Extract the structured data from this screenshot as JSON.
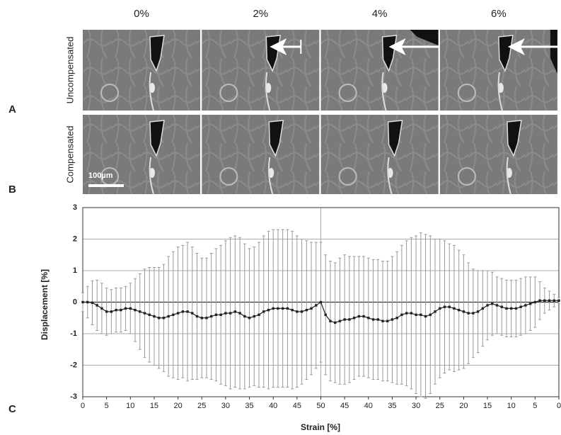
{
  "figure": {
    "panel_labels": [
      "A",
      "B",
      "C"
    ],
    "columns": [
      "0%",
      "2%",
      "4%",
      "6%"
    ],
    "rows": [
      "Uncompensated",
      "Compensated"
    ],
    "scale_bar": "100µm"
  },
  "chart_data": {
    "type": "errorbar-line",
    "xlabel": "Strain [%]",
    "ylabel": "Displacement [%]",
    "x": [
      0,
      1,
      2,
      3,
      4,
      5,
      6,
      7,
      8,
      9,
      10,
      11,
      12,
      13,
      14,
      15,
      16,
      17,
      18,
      19,
      20,
      21,
      22,
      23,
      24,
      25,
      26,
      27,
      28,
      29,
      30,
      31,
      32,
      33,
      34,
      35,
      36,
      37,
      38,
      39,
      40,
      41,
      42,
      43,
      44,
      45,
      46,
      47,
      48,
      49,
      50,
      51,
      52,
      53,
      54,
      55,
      56,
      57,
      58,
      59,
      60,
      61,
      62,
      63,
      64,
      65,
      66,
      67,
      68,
      69,
      70,
      71,
      72,
      73,
      74,
      75,
      76,
      77,
      78,
      79,
      80,
      81,
      82,
      83,
      84,
      85,
      86,
      87,
      88,
      89,
      90,
      91,
      92,
      93,
      94,
      95,
      96,
      97,
      98,
      99,
      100
    ],
    "series": [
      {
        "color": "#222222",
        "error_color": "#9a9a9a",
        "values": [
          0,
          0,
          -0.02,
          -0.1,
          -0.2,
          -0.3,
          -0.3,
          -0.25,
          -0.25,
          -0.2,
          -0.2,
          -0.25,
          -0.3,
          -0.35,
          -0.4,
          -0.45,
          -0.5,
          -0.5,
          -0.45,
          -0.4,
          -0.35,
          -0.3,
          -0.3,
          -0.35,
          -0.45,
          -0.5,
          -0.5,
          -0.45,
          -0.4,
          -0.4,
          -0.35,
          -0.35,
          -0.3,
          -0.35,
          -0.45,
          -0.5,
          -0.45,
          -0.4,
          -0.3,
          -0.25,
          -0.2,
          -0.2,
          -0.2,
          -0.2,
          -0.25,
          -0.3,
          -0.3,
          -0.25,
          -0.2,
          -0.1,
          0,
          -0.4,
          -0.6,
          -0.65,
          -0.6,
          -0.55,
          -0.55,
          -0.5,
          -0.45,
          -0.45,
          -0.5,
          -0.55,
          -0.55,
          -0.6,
          -0.6,
          -0.55,
          -0.5,
          -0.4,
          -0.35,
          -0.35,
          -0.4,
          -0.4,
          -0.45,
          -0.4,
          -0.3,
          -0.2,
          -0.15,
          -0.15,
          -0.2,
          -0.25,
          -0.3,
          -0.35,
          -0.35,
          -0.3,
          -0.2,
          -0.1,
          -0.05,
          -0.1,
          -0.15,
          -0.2,
          -0.2,
          -0.2,
          -0.15,
          -0.1,
          -0.05,
          0,
          0.05,
          0.05,
          0.05,
          0.05,
          0.05
        ],
        "errors": [
          0.3,
          0.5,
          0.7,
          0.8,
          0.8,
          0.75,
          0.7,
          0.7,
          0.7,
          0.7,
          0.8,
          1,
          1.2,
          1.4,
          1.5,
          1.55,
          1.6,
          1.7,
          1.9,
          2,
          2.1,
          2.1,
          2.2,
          2.1,
          2,
          1.9,
          1.9,
          2,
          2.1,
          2.2,
          2.3,
          2.4,
          2.4,
          2.4,
          2.3,
          2.2,
          2.2,
          2.3,
          2.4,
          2.5,
          2.5,
          2.5,
          2.5,
          2.5,
          2.5,
          2.4,
          2.3,
          2.2,
          2.1,
          2,
          1.9,
          1.9,
          1.9,
          1.9,
          2,
          2.05,
          2,
          1.95,
          1.9,
          1.9,
          1.9,
          1.9,
          1.9,
          1.9,
          1.9,
          2,
          2.1,
          2.2,
          2.3,
          2.4,
          2.5,
          2.6,
          2.6,
          2.5,
          2.3,
          2.2,
          2.1,
          2,
          2,
          1.9,
          1.8,
          1.6,
          1.4,
          1.3,
          1.2,
          1.1,
          1,
          0.9,
          0.9,
          0.9,
          0.9,
          0.9,
          0.9,
          0.9,
          0.85,
          0.8,
          0.6,
          0.4,
          0.3,
          0.2,
          0.1
        ]
      }
    ],
    "xlim": [
      0,
      100
    ],
    "xticks": [
      0,
      5,
      10,
      15,
      20,
      25,
      30,
      35,
      40,
      45,
      50,
      {
        "value": 55,
        "label": "45"
      },
      {
        "value": 60,
        "label": "40"
      },
      {
        "value": 65,
        "label": "35"
      },
      {
        "value": 70,
        "label": "30"
      },
      {
        "value": 75,
        "label": "25"
      },
      {
        "value": 80,
        "label": "20"
      },
      {
        "value": 85,
        "label": "15"
      },
      {
        "value": 90,
        "label": "10"
      },
      {
        "value": 95,
        "label": "5"
      },
      {
        "value": 100,
        "label": "0"
      }
    ],
    "ylim": [
      -3,
      3
    ],
    "yticks": [
      -3,
      -2,
      -1,
      0,
      1,
      2,
      3
    ],
    "grid": true,
    "vline": 50
  }
}
